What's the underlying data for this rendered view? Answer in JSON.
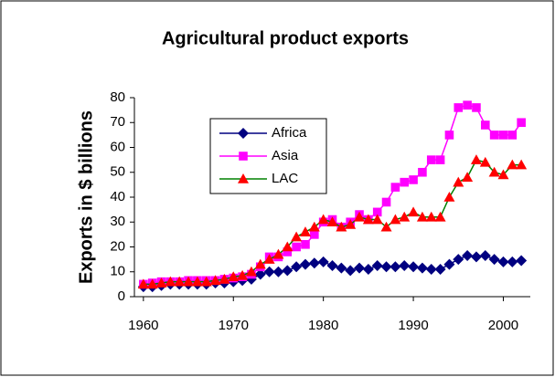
{
  "chart_data": {
    "type": "line",
    "title": "Agricultural product exports",
    "y_label": "Exports in $ billions",
    "x": [
      1960,
      1961,
      1962,
      1963,
      1964,
      1965,
      1966,
      1967,
      1968,
      1969,
      1970,
      1971,
      1972,
      1973,
      1974,
      1975,
      1976,
      1977,
      1978,
      1979,
      1980,
      1981,
      1982,
      1983,
      1984,
      1985,
      1986,
      1987,
      1988,
      1989,
      1990,
      1991,
      1992,
      1993,
      1994,
      1995,
      1996,
      1997,
      1998,
      1999,
      2000,
      2001,
      2002
    ],
    "series": [
      {
        "name": "Africa",
        "color": "#000080",
        "marker": "diamond",
        "marker_color": "#000080",
        "values": [
          4,
          4,
          4.5,
          5,
          5,
          5,
          5,
          5,
          5.5,
          5.5,
          6,
          6.5,
          7,
          9,
          10,
          10,
          10.5,
          12,
          13,
          13.5,
          14,
          12.5,
          11.5,
          10.5,
          11.5,
          11,
          12.5,
          12,
          12,
          12.5,
          12,
          11.5,
          11,
          11,
          13,
          15,
          16.5,
          16,
          16.5,
          15,
          14,
          14,
          14.5
        ]
      },
      {
        "name": "Asia",
        "color": "#FF00FF",
        "marker": "square",
        "marker_color": "#FF00FF",
        "values": [
          5,
          5.5,
          6,
          6,
          6,
          6.5,
          6.5,
          6.5,
          6.5,
          7,
          7.5,
          8,
          9,
          12,
          16,
          16,
          18,
          20,
          21,
          25,
          30,
          31,
          28,
          30,
          33,
          31,
          34,
          38,
          44,
          46,
          47,
          50,
          55,
          55,
          65,
          76,
          77,
          76,
          69,
          65,
          65,
          65,
          70
        ]
      },
      {
        "name": "LAC",
        "color": "#008000",
        "marker": "triangle",
        "marker_color": "#FF0000",
        "values": [
          5,
          5,
          5.5,
          6,
          6,
          6,
          6,
          6,
          6.5,
          7,
          8,
          8.5,
          10,
          13,
          15,
          17,
          20,
          24,
          26,
          28,
          31,
          30,
          28,
          29,
          32,
          31,
          31,
          28,
          31,
          32,
          34,
          32,
          32,
          32,
          40,
          46,
          48,
          55,
          54,
          50,
          49,
          53,
          53
        ]
      }
    ],
    "xlim": [
      1959,
      2003
    ],
    "xticks": [
      1960,
      1970,
      1980,
      1990,
      2000
    ],
    "ylim": [
      0,
      80
    ],
    "yticks": [
      0,
      10,
      20,
      30,
      40,
      50,
      60,
      70,
      80
    ],
    "grid": false
  }
}
